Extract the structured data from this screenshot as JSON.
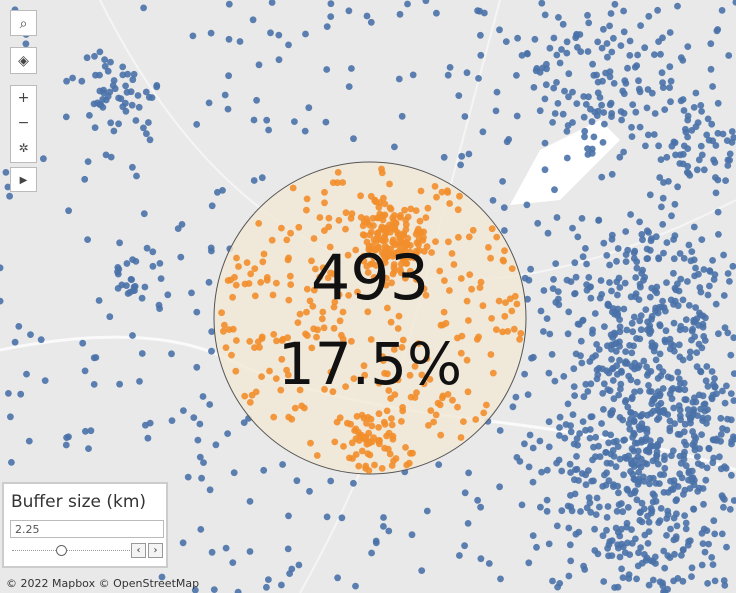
{
  "buffer": {
    "count": "493",
    "share": "17.5%"
  },
  "parameter": {
    "title": "Buffer size (km)",
    "value": "2.25"
  },
  "attribution": "© 2022 Mapbox © OpenStreetMap"
}
